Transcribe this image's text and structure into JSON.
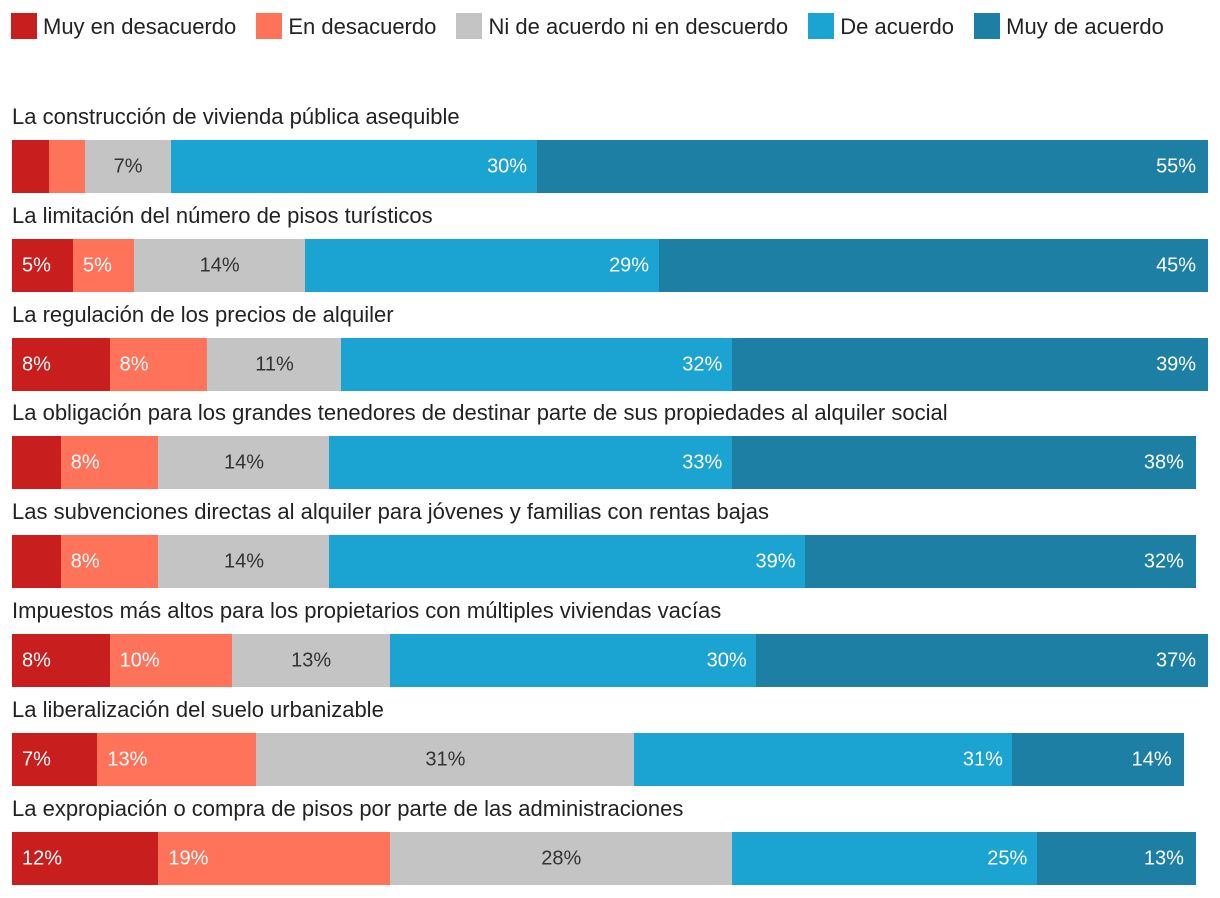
{
  "chart_data": {
    "type": "bar",
    "orientation": "horizontal",
    "stacked": true,
    "xlim": [
      0,
      100
    ],
    "legend_position": "top",
    "series": [
      {
        "name": "Muy en desacuerdo",
        "color": "#c81e1e",
        "text_color": "#ffffff"
      },
      {
        "name": "En desacuerdo",
        "color": "#ff735a",
        "text_color": "#ffffff"
      },
      {
        "name": "Ni de acuerdo ni en descuerdo",
        "color": "#c4c4c4",
        "text_color": "#333333"
      },
      {
        "name": "De acuerdo",
        "color": "#1ba3d2",
        "text_color": "#ffffff"
      },
      {
        "name": "Muy de acuerdo",
        "color": "#1d7fa3",
        "text_color": "#ffffff"
      }
    ],
    "categories": [
      {
        "label": "La construcción de vivienda pública asequible",
        "values": [
          3,
          3,
          7,
          30,
          55
        ],
        "labels": [
          "",
          "",
          "7%",
          "30%",
          "55%"
        ]
      },
      {
        "label": "La limitación del número de pisos turísticos",
        "values": [
          5,
          5,
          14,
          29,
          45
        ],
        "labels": [
          "5%",
          "5%",
          "14%",
          "29%",
          "45%"
        ]
      },
      {
        "label": "La regulación de los precios de alquiler",
        "values": [
          8,
          8,
          11,
          32,
          39
        ],
        "labels": [
          "8%",
          "8%",
          "11%",
          "32%",
          "39%"
        ]
      },
      {
        "label": "La obligación para los grandes tenedores de destinar parte de sus propiedades al alquiler social",
        "values": [
          4,
          8,
          14,
          33,
          38
        ],
        "labels": [
          "",
          "8%",
          "14%",
          "33%",
          "38%"
        ]
      },
      {
        "label": "Las subvenciones directas al alquiler para jóvenes y familias con rentas bajas",
        "values": [
          4,
          8,
          14,
          39,
          32
        ],
        "labels": [
          "",
          "8%",
          "14%",
          "39%",
          "32%"
        ]
      },
      {
        "label": "Impuestos más altos para los propietarios con múltiples viviendas vacías",
        "values": [
          8,
          10,
          13,
          30,
          37
        ],
        "labels": [
          "8%",
          "10%",
          "13%",
          "30%",
          "37%"
        ]
      },
      {
        "label": "La liberalización del suelo urbanizable",
        "values": [
          7,
          13,
          31,
          31,
          14
        ],
        "labels": [
          "7%",
          "13%",
          "31%",
          "31%",
          "14%"
        ]
      },
      {
        "label": "La expropiación o compra de pisos por parte de las administraciones",
        "values": [
          12,
          19,
          28,
          25,
          13
        ],
        "labels": [
          "12%",
          "19%",
          "28%",
          "25%",
          "13%"
        ]
      }
    ]
  }
}
